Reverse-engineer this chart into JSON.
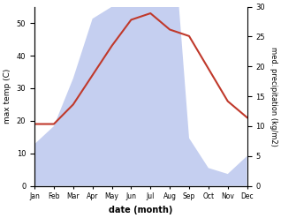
{
  "months": [
    "Jan",
    "Feb",
    "Mar",
    "Apr",
    "May",
    "Jun",
    "Jul",
    "Aug",
    "Sep",
    "Oct",
    "Nov",
    "Dec"
  ],
  "temp": [
    19,
    19,
    25,
    34,
    43,
    51,
    53,
    48,
    46,
    36,
    26,
    21
  ],
  "precip": [
    7,
    10,
    18,
    28,
    30,
    45,
    55,
    50,
    8,
    3,
    2,
    5
  ],
  "temp_color": "#c0392b",
  "precip_fill_color": "#c5cff0",
  "ylim_left": [
    0,
    55
  ],
  "ylim_right": [
    0,
    30
  ],
  "ylabel_left": "max temp (C)",
  "ylabel_right": "med. precipitation (kg/m2)",
  "xlabel": "date (month)",
  "left_yticks": [
    0,
    10,
    20,
    30,
    40,
    50
  ],
  "right_yticks": [
    0,
    5,
    10,
    15,
    20,
    25,
    30
  ],
  "fig_width": 3.18,
  "fig_height": 2.47,
  "dpi": 100
}
